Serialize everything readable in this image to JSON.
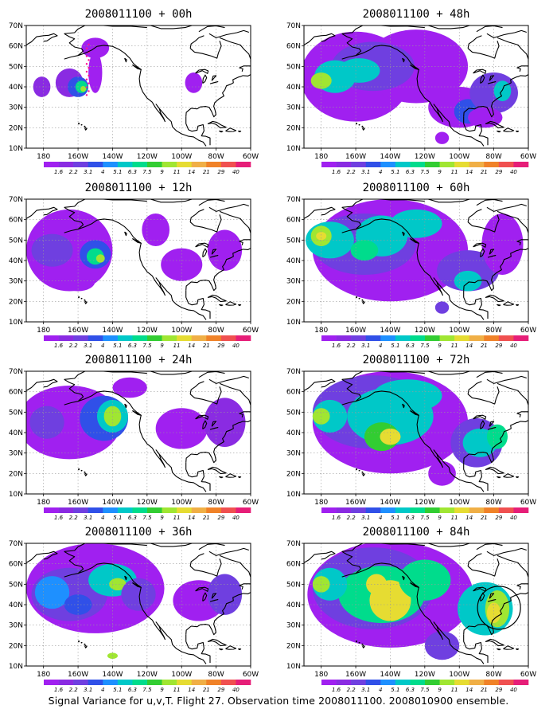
{
  "colors": {
    "scale": [
      "#a020f0",
      "#8a2be2",
      "#6f3fe0",
      "#3050e8",
      "#1e90ff",
      "#00c8c8",
      "#00dc8c",
      "#32cd32",
      "#a0e632",
      "#e6dc32",
      "#f0af46",
      "#f08228",
      "#f05050",
      "#e61e78"
    ],
    "land": "#000000",
    "grid": "#9a9a9a",
    "target_circle": "#000000",
    "flight_track": "#ff1493"
  },
  "map": {
    "lon_range": [
      -190,
      -60
    ],
    "lat_range": [
      10,
      70
    ],
    "lat_ticks": [
      "10N",
      "20N",
      "30N",
      "40N",
      "50N",
      "60N",
      "70N"
    ],
    "lon_ticks": [
      "180",
      "160W",
      "140W",
      "120W",
      "100W",
      "80W",
      "60W"
    ]
  },
  "colorbar": {
    "labels": [
      "1.6",
      "2.2",
      "3.1",
      "4",
      "5.1",
      "6.3",
      "7.5",
      "9",
      "11",
      "14",
      "21",
      "29",
      "40"
    ]
  },
  "panels": [
    {
      "title": "2008011100 + 00h",
      "forecast_hour": 0
    },
    {
      "title": "2008011100 + 48h",
      "forecast_hour": 48
    },
    {
      "title": "2008011100 + 12h",
      "forecast_hour": 12
    },
    {
      "title": "2008011100 + 60h",
      "forecast_hour": 60
    },
    {
      "title": "2008011100 + 24h",
      "forecast_hour": 24
    },
    {
      "title": "2008011100 + 72h",
      "forecast_hour": 72
    },
    {
      "title": "2008011100 + 36h",
      "forecast_hour": 36
    },
    {
      "title": "2008011100 + 84h",
      "forecast_hour": 84
    }
  ],
  "caption": "Signal Variance for u,v,T. Flight 27. Observation time 2008011100. 2008010900 ensemble."
}
